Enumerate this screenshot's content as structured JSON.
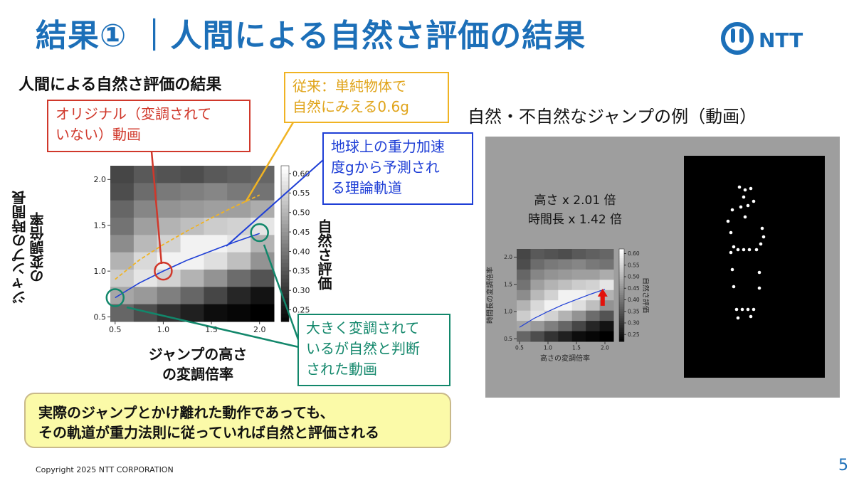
{
  "slide": {
    "title": "結果① ｜人間による自然さ評価の結果",
    "brand": "NTT",
    "section_title": "人間による自然さ評価の結果",
    "copyright": "Copyright 2025 NTT CORPORATION",
    "page_number": "5",
    "accent_color": "#1c6fb8"
  },
  "callouts": {
    "red": [
      "オリジナル（変調されて",
      "いない）動画"
    ],
    "yellow": [
      "従来：単純物体で",
      "自然にみえる0.6g"
    ],
    "blue": [
      "地球上の重力加速",
      "度gから予測され",
      "る理論軌道"
    ],
    "green": [
      "大きく変調されて",
      "いるが自然と判断",
      "された動画"
    ]
  },
  "conclusion": [
    "実際のジャンプとかけ離れた動作であっても、",
    "その軌道が重力法則に従っていれば自然と評価される"
  ],
  "video": {
    "title": "自然・不自然なジャンプの例（動画）",
    "height_factor": "高さ x 2.01 倍",
    "time_factor": "時間長 x 1.42 倍"
  },
  "chart_data": [
    {
      "type": "heatmap",
      "xlabel": "ジャンプの高さの変調倍率",
      "xlabel_lines": [
        "ジャンプの高さ",
        "の変調倍率"
      ],
      "ylabel": "ジャンプの時間長の変調倍率",
      "ylabel_lines": [
        "ジャンプの時間長",
        "の変調倍率"
      ],
      "colorbar_label": "自然さ評価",
      "x_ticks": [
        "0.5",
        "1.0",
        "1.5",
        "2.0"
      ],
      "y_ticks": [
        "2.0",
        "1.5",
        "1.0",
        "0.5"
      ],
      "colorbar_ticks": [
        "0.60",
        "0.55",
        "0.50",
        "0.45",
        "0.40",
        "0.35",
        "0.30",
        "0.25"
      ],
      "xlim": [
        0.45,
        2.15
      ],
      "ylim": [
        0.45,
        2.15
      ],
      "colorbar_range": [
        0.22,
        0.62
      ],
      "grid_values": [
        [
          0.33,
          0.36,
          0.35,
          0.34,
          0.36,
          0.37,
          0.38
        ],
        [
          0.34,
          0.39,
          0.41,
          0.42,
          0.43,
          0.41,
          0.4
        ],
        [
          0.38,
          0.43,
          0.45,
          0.46,
          0.47,
          0.47,
          0.49
        ],
        [
          0.4,
          0.47,
          0.5,
          0.52,
          0.54,
          0.55,
          0.58
        ],
        [
          0.44,
          0.51,
          0.55,
          0.6,
          0.6,
          0.58,
          0.5
        ],
        [
          0.5,
          0.56,
          0.6,
          0.6,
          0.57,
          0.52,
          0.45
        ],
        [
          0.54,
          0.58,
          0.55,
          0.5,
          0.45,
          0.39,
          0.35
        ],
        [
          0.48,
          0.46,
          0.42,
          0.38,
          0.33,
          0.28,
          0.25
        ],
        [
          0.38,
          0.34,
          0.3,
          0.27,
          0.24,
          0.23,
          0.22
        ]
      ],
      "theory_curve": {
        "name": "地球上の重力加速度gから予測される理論軌道",
        "color": "#1f3fd6",
        "x": [
          0.5,
          0.75,
          1.0,
          1.25,
          1.5,
          1.75,
          2.0
        ],
        "y": [
          0.71,
          0.87,
          1.0,
          1.12,
          1.22,
          1.32,
          1.41
        ]
      },
      "reference_curve": {
        "name": "従来：単純物体で自然にみえる0.6g",
        "color": "#f0b323",
        "x": [
          0.5,
          0.75,
          1.0,
          1.25,
          1.5,
          1.75,
          2.0
        ],
        "y": [
          0.91,
          1.12,
          1.29,
          1.44,
          1.58,
          1.71,
          1.83
        ]
      },
      "markers": [
        {
          "name": "original",
          "color": "#d0382b",
          "x": 1.0,
          "y": 1.0
        },
        {
          "name": "modulated-natural",
          "color": "#12876b",
          "x": 2.0,
          "y": 1.42
        },
        {
          "name": "low-end",
          "color": "#12876b",
          "x": 0.5,
          "y": 0.71
        }
      ]
    },
    {
      "type": "heatmap",
      "xlabel": "高さの変調倍率",
      "ylabel": "時間長の変調倍率",
      "colorbar_label": "自然さ評価",
      "x_ticks": [
        "0.5",
        "1.0",
        "1.5",
        "2.0"
      ],
      "y_ticks": [
        "2.0",
        "1.5",
        "1.0",
        "0.5"
      ],
      "colorbar_ticks": [
        "0.60",
        "0.55",
        "0.50",
        "0.45",
        "0.40",
        "0.35",
        "0.30",
        "0.25"
      ],
      "highlight": {
        "x": 2.01,
        "y": 1.42,
        "color": "#e3120b"
      }
    }
  ]
}
